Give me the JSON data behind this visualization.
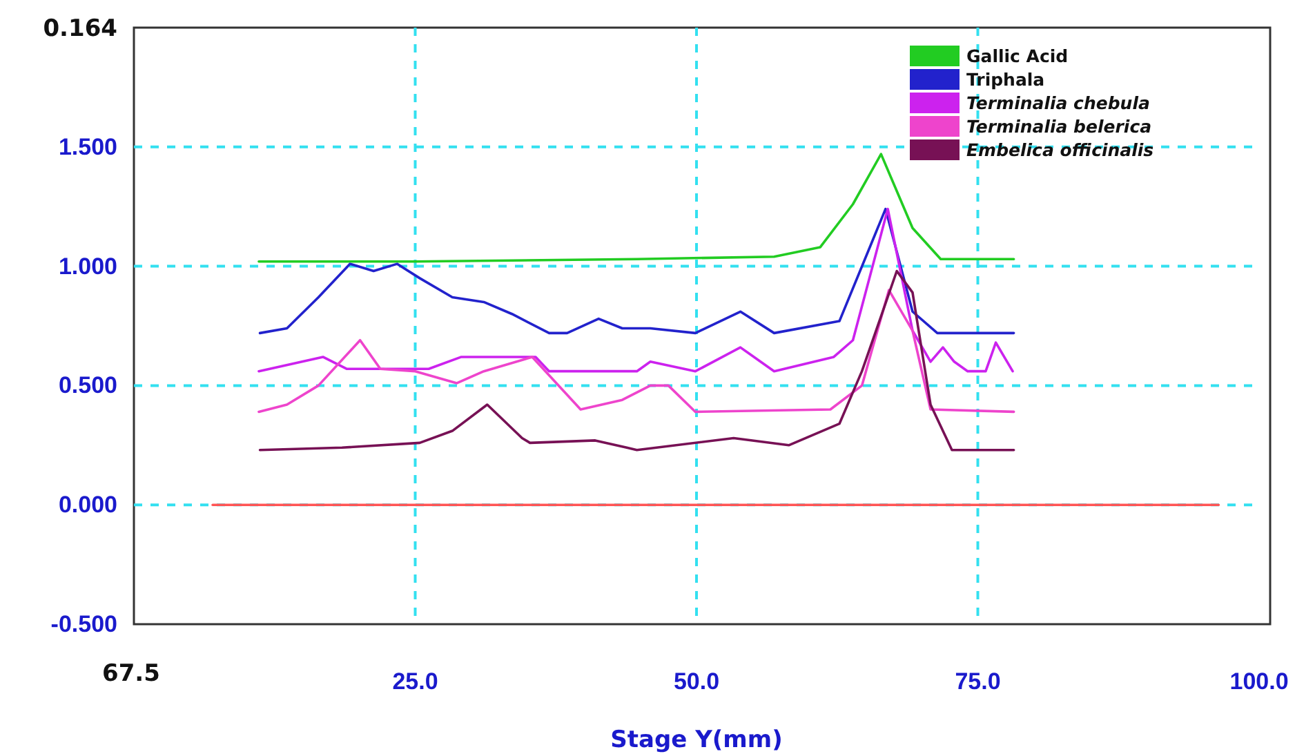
{
  "chart_data": {
    "type": "line",
    "xlabel": "Stage Y(mm)",
    "xlim": [
      0,
      100
    ],
    "xticks": [
      {
        "value": 25,
        "label": "25.0"
      },
      {
        "value": 50,
        "label": "50.0"
      },
      {
        "value": 75,
        "label": "75.0"
      },
      {
        "value": 100,
        "label": "100.0"
      }
    ],
    "ylim": [
      -0.5,
      2.0
    ],
    "yticks": [
      {
        "value": -0.5,
        "label": "-0.500"
      },
      {
        "value": 0,
        "label": "0.000"
      },
      {
        "value": 0.5,
        "label": "0.500"
      },
      {
        "value": 1,
        "label": "1.000"
      },
      {
        "value": 1.5,
        "label": "1.500"
      }
    ],
    "annotations": [
      "0.164",
      "67.5"
    ],
    "grid": true,
    "legend": "top right",
    "line_style": "solid",
    "marker": "none",
    "series": [
      {
        "name": "Gallic Acid",
        "color": "#22cc22",
        "x": [
          11.1,
          25,
          44.7,
          56.9,
          61.0,
          63.9,
          66.4,
          69.2,
          71.7,
          78.2
        ],
        "values": [
          1.02,
          1.02,
          1.03,
          1.04,
          1.08,
          1.26,
          1.47,
          1.16,
          1.03,
          1.03
        ]
      },
      {
        "name": "Triphala",
        "color": "#2222cc",
        "x": [
          11.2,
          13.6,
          16.4,
          19.2,
          21.3,
          23.4,
          25.4,
          28.3,
          31.1,
          33.6,
          36.9,
          38.5,
          41.3,
          43.4,
          45.9,
          49.9,
          53.9,
          56.9,
          62.7,
          66.8,
          69.2,
          71.4,
          78.2
        ],
        "values": [
          0.72,
          0.74,
          0.87,
          1.01,
          0.98,
          1.01,
          0.95,
          0.87,
          0.85,
          0.8,
          0.72,
          0.72,
          0.78,
          0.74,
          0.74,
          0.72,
          0.81,
          0.72,
          0.77,
          1.24,
          0.81,
          0.72,
          0.72
        ]
      },
      {
        "name": "Terminalia chebula",
        "color": "#cc22ee",
        "x": [
          11.1,
          16.8,
          18.9,
          26.2,
          29.1,
          35.7,
          36.9,
          44.7,
          45.9,
          49.9,
          53.9,
          56.9,
          62.2,
          63.9,
          67.0,
          69.2,
          70.8,
          71.9,
          72.9,
          74.1,
          75.7,
          76.6,
          78.1
        ],
        "values": [
          0.56,
          0.62,
          0.57,
          0.57,
          0.62,
          0.62,
          0.56,
          0.56,
          0.6,
          0.56,
          0.66,
          0.56,
          0.62,
          0.69,
          1.24,
          0.73,
          0.6,
          0.66,
          0.6,
          0.56,
          0.56,
          0.68,
          0.56
        ]
      },
      {
        "name": "Terminalia belerica",
        "color": "#ee44cc",
        "x": [
          11.1,
          13.6,
          16.4,
          20.1,
          21.9,
          25,
          28.7,
          31.1,
          35.4,
          39.7,
          43.4,
          45.9,
          47.5,
          49.9,
          61.9,
          64.7,
          67.1,
          69.2,
          70.8,
          78.2
        ],
        "values": [
          0.39,
          0.42,
          0.5,
          0.69,
          0.57,
          0.56,
          0.51,
          0.56,
          0.62,
          0.4,
          0.44,
          0.5,
          0.5,
          0.39,
          0.4,
          0.5,
          0.9,
          0.73,
          0.4,
          0.39
        ]
      },
      {
        "name": "Embelica officinalis",
        "color": "#771155",
        "x": [
          11.2,
          18.5,
          25.4,
          28.3,
          31.4,
          34.5,
          35.2,
          41.0,
          43.8,
          44.7,
          53.3,
          58.2,
          62.7,
          64.7,
          67.8,
          69.2,
          70.8,
          72.7,
          78.2
        ],
        "values": [
          0.23,
          0.24,
          0.26,
          0.31,
          0.42,
          0.28,
          0.26,
          0.27,
          0.24,
          0.23,
          0.28,
          0.25,
          0.34,
          0.56,
          0.98,
          0.89,
          0.42,
          0.23,
          0.23
        ]
      },
      {
        "color": "#ff5555",
        "x": [
          7.0,
          96.4
        ],
        "values": [
          0,
          0
        ]
      }
    ]
  }
}
